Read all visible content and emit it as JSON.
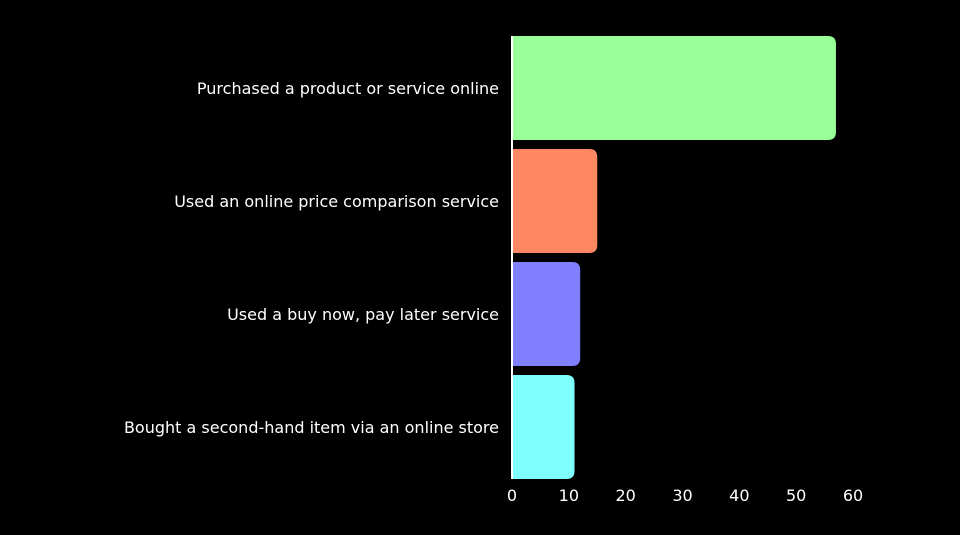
{
  "chart_data": {
    "type": "bar",
    "orientation": "horizontal",
    "title": "",
    "xlabel": "",
    "ylabel": "",
    "categories": [
      "Purchased a product or service online",
      "Used an online price comparison service",
      "Used a buy now, pay later service",
      "Bought a second-hand item via an online store"
    ],
    "values": [
      57,
      15,
      12,
      11
    ],
    "colors": [
      "#99ff99",
      "#ff8862",
      "#8080ff",
      "#80ffff"
    ],
    "xlim": [
      0,
      60
    ],
    "xticks": [
      "0",
      "10",
      "20",
      "30",
      "40",
      "50",
      "60"
    ],
    "grid": false,
    "background": "#000000"
  }
}
